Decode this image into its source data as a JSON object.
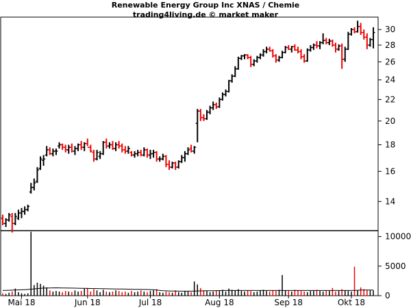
{
  "header": {
    "title": "Renewable Energy Group Inc XNAS / Chemie",
    "subtitle": "trading4living.de © market maker"
  },
  "colors": {
    "up": "#000000",
    "down": "#ee0000",
    "frame": "#000000",
    "avg": "#000000"
  },
  "chart_data": [
    {
      "type": "ohlc",
      "title": "Renewable Energy Group Inc XNAS / Chemie",
      "ylim": [
        12.3,
        31.7
      ],
      "yticks": [
        14,
        16,
        18,
        20,
        22,
        24,
        26,
        28,
        30
      ],
      "xtick_labels": [
        {
          "label": "Mai 18",
          "index": 6
        },
        {
          "label": "Jun 18",
          "index": 27
        },
        {
          "label": "Jul 18",
          "index": 47
        },
        {
          "label": "Aug 18",
          "index": 69
        },
        {
          "label": "Sep 18",
          "index": 91
        },
        {
          "label": "Okt 18",
          "index": 111
        }
      ],
      "series": [
        {
          "values": [
            [
              13.0,
              13.2,
              12.6,
              12.7
            ],
            [
              12.7,
              13.0,
              12.5,
              12.9
            ],
            [
              12.9,
              13.3,
              12.8,
              13.2
            ],
            [
              13.1,
              13.3,
              12.2,
              12.7
            ],
            [
              12.7,
              13.3,
              12.6,
              13.1
            ],
            [
              13.0,
              13.5,
              12.9,
              13.3
            ],
            [
              13.3,
              13.6,
              13.0,
              13.4
            ],
            [
              13.4,
              13.7,
              13.2,
              13.5
            ],
            [
              13.5,
              13.8,
              13.4,
              13.7
            ],
            [
              14.6,
              15.2,
              14.5,
              14.9
            ],
            [
              14.9,
              15.5,
              14.7,
              15.2
            ],
            [
              15.3,
              16.3,
              15.2,
              16.1
            ],
            [
              16.2,
              17.1,
              16.1,
              16.9
            ],
            [
              16.8,
              17.2,
              16.4,
              16.9
            ],
            [
              17.2,
              17.9,
              17.1,
              17.6
            ],
            [
              17.6,
              17.8,
              17.2,
              17.3
            ],
            [
              17.3,
              17.7,
              17.1,
              17.5
            ],
            [
              17.5,
              17.7,
              17.2,
              17.5
            ],
            [
              17.9,
              18.2,
              17.7,
              18.0
            ],
            [
              18.0,
              18.1,
              17.6,
              17.8
            ],
            [
              17.8,
              18.0,
              17.4,
              17.6
            ],
            [
              17.6,
              18.0,
              17.3,
              17.8
            ],
            [
              17.8,
              18.1,
              17.4,
              17.5
            ],
            [
              17.5,
              17.9,
              17.2,
              17.7
            ],
            [
              17.7,
              18.1,
              17.5,
              18.0
            ],
            [
              18.0,
              18.3,
              17.6,
              17.8
            ],
            [
              17.8,
              18.2,
              17.5,
              18.1
            ],
            [
              18.1,
              18.5,
              17.9,
              17.8
            ],
            [
              17.8,
              18.0,
              17.4,
              17.5
            ],
            [
              17.4,
              17.6,
              16.7,
              16.9
            ],
            [
              16.9,
              17.6,
              16.8,
              17.4
            ],
            [
              17.1,
              17.5,
              16.9,
              17.3
            ],
            [
              17.3,
              18.3,
              17.2,
              18.2
            ],
            [
              18.2,
              18.5,
              17.7,
              17.9
            ],
            [
              17.9,
              18.2,
              17.7,
              18.0
            ],
            [
              18.0,
              18.3,
              17.6,
              17.7
            ],
            [
              17.7,
              18.2,
              17.5,
              18.0
            ],
            [
              18.0,
              18.3,
              17.7,
              17.9
            ],
            [
              17.9,
              18.1,
              17.4,
              17.6
            ],
            [
              17.6,
              17.9,
              17.3,
              17.5
            ],
            [
              17.5,
              17.9,
              17.3,
              17.7
            ],
            [
              17.4,
              17.5,
              17.1,
              17.2
            ],
            [
              17.2,
              17.5,
              17.0,
              17.3
            ],
            [
              17.3,
              17.6,
              17.1,
              17.4
            ],
            [
              17.4,
              17.6,
              17.1,
              17.2
            ],
            [
              17.2,
              17.8,
              17.1,
              17.6
            ],
            [
              17.6,
              17.7,
              17.0,
              17.2
            ],
            [
              17.2,
              17.6,
              16.9,
              17.3
            ],
            [
              17.3,
              17.6,
              17.0,
              17.4
            ],
            [
              17.4,
              17.5,
              16.7,
              16.9
            ],
            [
              16.9,
              17.1,
              16.7,
              16.9
            ],
            [
              16.9,
              17.3,
              16.8,
              17.1
            ],
            [
              17.1,
              17.2,
              16.3,
              16.5
            ],
            [
              16.5,
              16.8,
              16.1,
              16.3
            ],
            [
              16.3,
              16.7,
              16.2,
              16.6
            ],
            [
              16.6,
              16.7,
              16.1,
              16.3
            ],
            [
              16.3,
              16.8,
              16.2,
              16.7
            ],
            [
              16.7,
              17.2,
              16.6,
              17.0
            ],
            [
              17.0,
              17.5,
              16.7,
              17.3
            ],
            [
              17.3,
              17.8,
              17.2,
              17.6
            ],
            [
              17.7,
              18.0,
              17.4,
              17.5
            ],
            [
              17.5,
              17.9,
              17.3,
              17.8
            ],
            [
              19.8,
              21.1,
              18.2,
              20.9
            ],
            [
              20.9,
              21.1,
              20.0,
              20.3
            ],
            [
              20.3,
              20.6,
              20.0,
              20.2
            ],
            [
              20.2,
              21.0,
              20.1,
              20.8
            ],
            [
              20.8,
              21.4,
              20.6,
              21.2
            ],
            [
              21.2,
              21.8,
              21.0,
              21.5
            ],
            [
              21.5,
              21.7,
              21.1,
              21.3
            ],
            [
              21.3,
              22.2,
              21.2,
              22.0
            ],
            [
              22.0,
              22.7,
              21.9,
              22.5
            ],
            [
              22.5,
              23.0,
              22.3,
              22.8
            ],
            [
              22.8,
              24.0,
              22.7,
              23.9
            ],
            [
              23.9,
              24.6,
              23.7,
              24.4
            ],
            [
              24.4,
              25.5,
              24.3,
              25.2
            ],
            [
              25.2,
              26.6,
              25.1,
              26.4
            ],
            [
              26.4,
              26.8,
              26.2,
              26.7
            ],
            [
              26.7,
              26.9,
              26.3,
              26.8
            ],
            [
              26.8,
              26.9,
              26.3,
              26.5
            ],
            [
              26.5,
              26.7,
              25.4,
              25.7
            ],
            [
              25.7,
              26.3,
              25.5,
              26.1
            ],
            [
              26.1,
              26.7,
              25.9,
              26.5
            ],
            [
              26.5,
              27.0,
              26.3,
              26.8
            ],
            [
              26.8,
              27.5,
              26.6,
              27.2
            ],
            [
              27.2,
              27.8,
              27.0,
              27.5
            ],
            [
              27.5,
              27.8,
              27.2,
              27.3
            ],
            [
              27.3,
              27.5,
              26.5,
              26.7
            ],
            [
              26.7,
              26.9,
              25.9,
              26.2
            ],
            [
              26.2,
              26.7,
              26.0,
              26.5
            ],
            [
              26.5,
              27.3,
              26.4,
              27.1
            ],
            [
              27.1,
              27.9,
              27.0,
              27.7
            ],
            [
              27.7,
              28.0,
              27.4,
              27.5
            ],
            [
              27.5,
              27.9,
              27.1,
              27.8
            ],
            [
              27.8,
              28.1,
              27.3,
              27.4
            ],
            [
              27.4,
              27.8,
              27.0,
              27.2
            ],
            [
              27.2,
              27.5,
              26.3,
              26.6
            ],
            [
              26.6,
              26.9,
              25.9,
              26.1
            ],
            [
              26.1,
              27.6,
              26.0,
              27.4
            ],
            [
              27.4,
              28.0,
              27.2,
              27.7
            ],
            [
              27.7,
              28.2,
              27.4,
              28.0
            ],
            [
              28.0,
              28.5,
              27.6,
              27.9
            ],
            [
              27.9,
              28.5,
              27.5,
              28.3
            ],
            [
              28.3,
              29.5,
              28.1,
              28.6
            ],
            [
              28.6,
              28.9,
              28.1,
              28.3
            ],
            [
              28.3,
              28.8,
              28.0,
              28.5
            ],
            [
              28.5,
              28.7,
              27.8,
              28.0
            ],
            [
              28.0,
              28.3,
              27.1,
              27.5
            ],
            [
              27.5,
              28.1,
              27.3,
              27.9
            ],
            [
              27.9,
              28.2,
              25.2,
              26.3
            ],
            [
              26.3,
              27.8,
              26.0,
              27.5
            ],
            [
              27.5,
              29.7,
              27.4,
              29.4
            ],
            [
              29.4,
              30.2,
              29.2,
              30.0
            ],
            [
              30.0,
              30.3,
              29.5,
              29.7
            ],
            [
              29.7,
              31.2,
              29.6,
              30.4
            ],
            [
              30.4,
              30.9,
              29.3,
              29.6
            ],
            [
              29.6,
              30.0,
              28.7,
              29.0
            ],
            [
              29.0,
              29.5,
              27.5,
              28.0
            ],
            [
              28.0,
              28.9,
              27.8,
              28.7
            ],
            [
              28.7,
              30.3,
              27.6,
              29.6
            ]
          ]
        }
      ]
    },
    {
      "type": "bar",
      "title": "",
      "ylim": [
        0,
        11000
      ],
      "yticks": [
        0,
        5000,
        10000
      ],
      "values": [
        400,
        300,
        500,
        700,
        1200,
        600,
        400,
        300,
        400,
        10800,
        1800,
        2200,
        2000,
        1700,
        1400,
        900,
        700,
        800,
        700,
        600,
        800,
        700,
        600,
        900,
        700,
        800,
        1200,
        1300,
        700,
        1100,
        900,
        600,
        1000,
        700,
        600,
        700,
        900,
        800,
        600,
        700,
        500,
        800,
        600,
        700,
        900,
        700,
        600,
        800,
        900,
        1100,
        600,
        500,
        700,
        600,
        500,
        900,
        600,
        500,
        800,
        700,
        600,
        2400,
        1900,
        1300,
        900,
        800,
        600,
        700,
        900,
        800,
        1000,
        700,
        1200,
        1000,
        900,
        1100,
        800,
        700,
        900,
        800,
        600,
        700,
        900,
        1000,
        800,
        700,
        900,
        800,
        1000,
        3500,
        900,
        800,
        700,
        1000,
        900,
        800,
        700,
        600,
        800,
        900,
        1000,
        800,
        700,
        900,
        800,
        1300,
        700,
        800,
        1100,
        900,
        800,
        700,
        4900,
        900,
        1400,
        1100,
        900,
        900,
        900
      ],
      "avg": [
        900,
        900,
        920,
        940,
        960,
        980,
        1000,
        1020,
        1050,
        1100,
        1150,
        1200,
        1250,
        1280,
        1300,
        1310,
        1320,
        1330,
        1320,
        1310,
        1300,
        1290,
        1280,
        1270,
        1260,
        1250,
        1240,
        1230,
        1220,
        1210,
        1200,
        1190,
        1180,
        1170,
        1160,
        1150,
        1140,
        1130,
        1120,
        1110,
        1100,
        1090,
        1080,
        1070,
        1060,
        1050,
        1040,
        1030,
        1000,
        950,
        900,
        850,
        820,
        800,
        790,
        780,
        770,
        760,
        760,
        760,
        760,
        780,
        800,
        810,
        820,
        830,
        840,
        850,
        860,
        870,
        880,
        880,
        880,
        880,
        880,
        880,
        880,
        880,
        880,
        880,
        880,
        880,
        880,
        880,
        880,
        880,
        880,
        880,
        880,
        880,
        880,
        880,
        880,
        880,
        880,
        880,
        880,
        880,
        880,
        880,
        880,
        880,
        880,
        880,
        880,
        880,
        880,
        880,
        880,
        880,
        880,
        880,
        900,
        920,
        940,
        950,
        950,
        950,
        950
      ]
    }
  ]
}
